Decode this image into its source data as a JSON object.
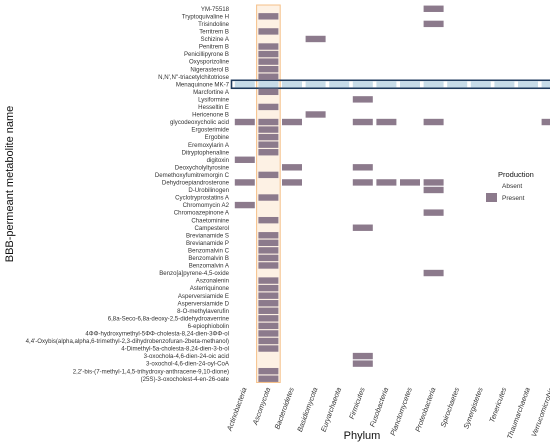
{
  "chart_data": {
    "type": "heatmap",
    "xlabel": "Phylum",
    "ylabel": "BBB-permeant metabolite name",
    "x_categories": [
      "Actinobacteria",
      "Ascomycota",
      "Bacteroidetes",
      "Basidiomycota",
      "Euryarchaeota",
      "Firmicutes",
      "Fusobacteria",
      "Planctomycetes",
      "Proteobacteria",
      "Spirochaetes",
      "Synergistetes",
      "Tenericutes",
      "Thaumarchaeota",
      "Verrucomicrobia"
    ],
    "y_categories": [
      "YM-75518",
      "Tryptoquivaline H",
      "Trisindoline",
      "Territrem B",
      "Schizine A",
      "Penitrem B",
      "Penicillipyrone B",
      "Oxysporizoline",
      "Nigerasterol B",
      "N,N',N''-triacetylchitotriose",
      "Menaquinone MK-7",
      "Marcfortine A",
      "Lysiformine",
      "Hesseltin E",
      "Hericenone B",
      "glycodeoxycholic acid",
      "Ergosterimide",
      "Ergobine",
      "Eremoxylarin A",
      "Ditryptophenaline",
      "digitoxin",
      "Deoxycholyltyrosine",
      "Demethoxyfumitremorgin C",
      "Dehydroepiandrosterone",
      "D-Urobilinogen",
      "Cyclotryprostatins A",
      "Chromomycin A2",
      "Chromoazepinone A",
      "Chaetominine",
      "Campesterol",
      "Brevianamide S",
      "Brevianamide P",
      "Benzomalvin C",
      "Benzomalvin B",
      "Benzomalvin A",
      "Benzo[a]pyrene-4,5-oxide",
      "Aszonalenin",
      "Asterriquinone",
      "Asperversiamide E",
      "Asperversiamide D",
      "8-O-methylaverufin",
      "6,8a-Seco-6,8a-deoxy-2,5-didehydroaverrine",
      "6-epiophiobolin",
      "4ΦΦ-hydroxymethyl-5ΦΦ-cholesta-8,24-dien-3ΦΦ-ol",
      "4,4'-Oxybis(alpha,alpha,6-trimethyl-2,3-dihydrobenzofuran-2beta-methanol)",
      "4-Dimethyl-5a-cholesta-8,24-dien-3-b-ol",
      "3-oxochola-4,6-dien-24-oic acid",
      "3-oxochol-4,6-dien-24-oyl-CoA",
      "2,2'-bis-(7-methyl-1,4,5-trihydroxy-anthracene-9,10-dione)",
      "(25S)-3-oxocholest-4-en-26-oate"
    ],
    "present": [
      [
        "YM-75518",
        "Proteobacteria"
      ],
      [
        "Tryptoquivaline H",
        "Ascomycota"
      ],
      [
        "Trisindoline",
        "Proteobacteria"
      ],
      [
        "Territrem B",
        "Ascomycota"
      ],
      [
        "Schizine A",
        "Basidiomycota"
      ],
      [
        "Penitrem B",
        "Ascomycota"
      ],
      [
        "Penicillipyrone B",
        "Ascomycota"
      ],
      [
        "Oxysporizoline",
        "Ascomycota"
      ],
      [
        "Nigerasterol B",
        "Ascomycota"
      ],
      [
        "N,N',N''-triacetylchitotriose",
        "Ascomycota"
      ],
      [
        "Menaquinone MK-7",
        "Actinobacteria"
      ],
      [
        "Menaquinone MK-7",
        "Ascomycota"
      ],
      [
        "Menaquinone MK-7",
        "Bacteroidetes"
      ],
      [
        "Menaquinone MK-7",
        "Basidiomycota"
      ],
      [
        "Menaquinone MK-7",
        "Euryarchaeota"
      ],
      [
        "Menaquinone MK-7",
        "Firmicutes"
      ],
      [
        "Menaquinone MK-7",
        "Fusobacteria"
      ],
      [
        "Menaquinone MK-7",
        "Planctomycetes"
      ],
      [
        "Menaquinone MK-7",
        "Proteobacteria"
      ],
      [
        "Menaquinone MK-7",
        "Spirochaetes"
      ],
      [
        "Menaquinone MK-7",
        "Synergistetes"
      ],
      [
        "Menaquinone MK-7",
        "Tenericutes"
      ],
      [
        "Menaquinone MK-7",
        "Thaumarchaeota"
      ],
      [
        "Menaquinone MK-7",
        "Verrucomicrobia"
      ],
      [
        "Marcfortine A",
        "Ascomycota"
      ],
      [
        "Lysiformine",
        "Firmicutes"
      ],
      [
        "Hesseltin E",
        "Ascomycota"
      ],
      [
        "Hericenone B",
        "Basidiomycota"
      ],
      [
        "glycodeoxycholic acid",
        "Actinobacteria"
      ],
      [
        "glycodeoxycholic acid",
        "Ascomycota"
      ],
      [
        "glycodeoxycholic acid",
        "Bacteroidetes"
      ],
      [
        "glycodeoxycholic acid",
        "Firmicutes"
      ],
      [
        "glycodeoxycholic acid",
        "Fusobacteria"
      ],
      [
        "glycodeoxycholic acid",
        "Proteobacteria"
      ],
      [
        "glycodeoxycholic acid",
        "Verrucomicrobia"
      ],
      [
        "Ergosterimide",
        "Ascomycota"
      ],
      [
        "Ergobine",
        "Ascomycota"
      ],
      [
        "Eremoxylarin A",
        "Ascomycota"
      ],
      [
        "Ditryptophenaline",
        "Ascomycota"
      ],
      [
        "digitoxin",
        "Actinobacteria"
      ],
      [
        "Deoxycholyltyrosine",
        "Bacteroidetes"
      ],
      [
        "Deoxycholyltyrosine",
        "Firmicutes"
      ],
      [
        "Demethoxyfumitremorgin C",
        "Ascomycota"
      ],
      [
        "Dehydroepiandrosterone",
        "Actinobacteria"
      ],
      [
        "Dehydroepiandrosterone",
        "Bacteroidetes"
      ],
      [
        "Dehydroepiandrosterone",
        "Firmicutes"
      ],
      [
        "Dehydroepiandrosterone",
        "Fusobacteria"
      ],
      [
        "Dehydroepiandrosterone",
        "Planctomycetes"
      ],
      [
        "Dehydroepiandrosterone",
        "Proteobacteria"
      ],
      [
        "D-Urobilinogen",
        "Proteobacteria"
      ],
      [
        "Cyclotryprostatins A",
        "Ascomycota"
      ],
      [
        "Chromomycin A2",
        "Actinobacteria"
      ],
      [
        "Chromoazepinone A",
        "Proteobacteria"
      ],
      [
        "Chaetominine",
        "Ascomycota"
      ],
      [
        "Campesterol",
        "Firmicutes"
      ],
      [
        "Brevianamide S",
        "Ascomycota"
      ],
      [
        "Brevianamide P",
        "Ascomycota"
      ],
      [
        "Benzomalvin C",
        "Ascomycota"
      ],
      [
        "Benzomalvin B",
        "Ascomycota"
      ],
      [
        "Benzomalvin A",
        "Ascomycota"
      ],
      [
        "Benzo[a]pyrene-4,5-oxide",
        "Proteobacteria"
      ],
      [
        "Aszonalenin",
        "Ascomycota"
      ],
      [
        "Asterriquinone",
        "Ascomycota"
      ],
      [
        "Asperversiamide E",
        "Ascomycota"
      ],
      [
        "Asperversiamide D",
        "Ascomycota"
      ],
      [
        "8-O-methylaverufin",
        "Ascomycota"
      ],
      [
        "6,8a-Seco-6,8a-deoxy-2,5-didehydroaverrine",
        "Ascomycota"
      ],
      [
        "6-epiophiobolin",
        "Ascomycota"
      ],
      [
        "4ΦΦ-hydroxymethyl-5ΦΦ-cholesta-8,24-dien-3ΦΦ-ol",
        "Ascomycota"
      ],
      [
        "4,4'-Oxybis(alpha,alpha,6-trimethyl-2,3-dihydrobenzofuran-2beta-methanol)",
        "Ascomycota"
      ],
      [
        "4-Dimethyl-5a-cholesta-8,24-dien-3-b-ol",
        "Ascomycota"
      ],
      [
        "3-oxochola-4,6-dien-24-oic acid",
        "Firmicutes"
      ],
      [
        "3-oxochol-4,6-dien-24-oyl-CoA",
        "Firmicutes"
      ],
      [
        "2,2'-bis-(7-methyl-1,4,5-trihydroxy-anthracene-9,10-dione)",
        "Ascomycota"
      ],
      [
        "(25S)-3-oxocholest-4-en-26-oate",
        "Ascomycota"
      ]
    ],
    "highlight_column": "Ascomycota",
    "highlight_row": "Menaquinone MK-7",
    "legend": {
      "title": "Production",
      "entries": [
        "Absent",
        "Present"
      ],
      "placement": "right"
    },
    "grid": false
  },
  "colors": {
    "present": "#8c7a8c",
    "present_highlight_row": "#c6dbe8",
    "column_highlight_fill": "#fdf1e4",
    "column_highlight_border": "#f5c089",
    "row_highlight_border": "#1f3a5c"
  }
}
